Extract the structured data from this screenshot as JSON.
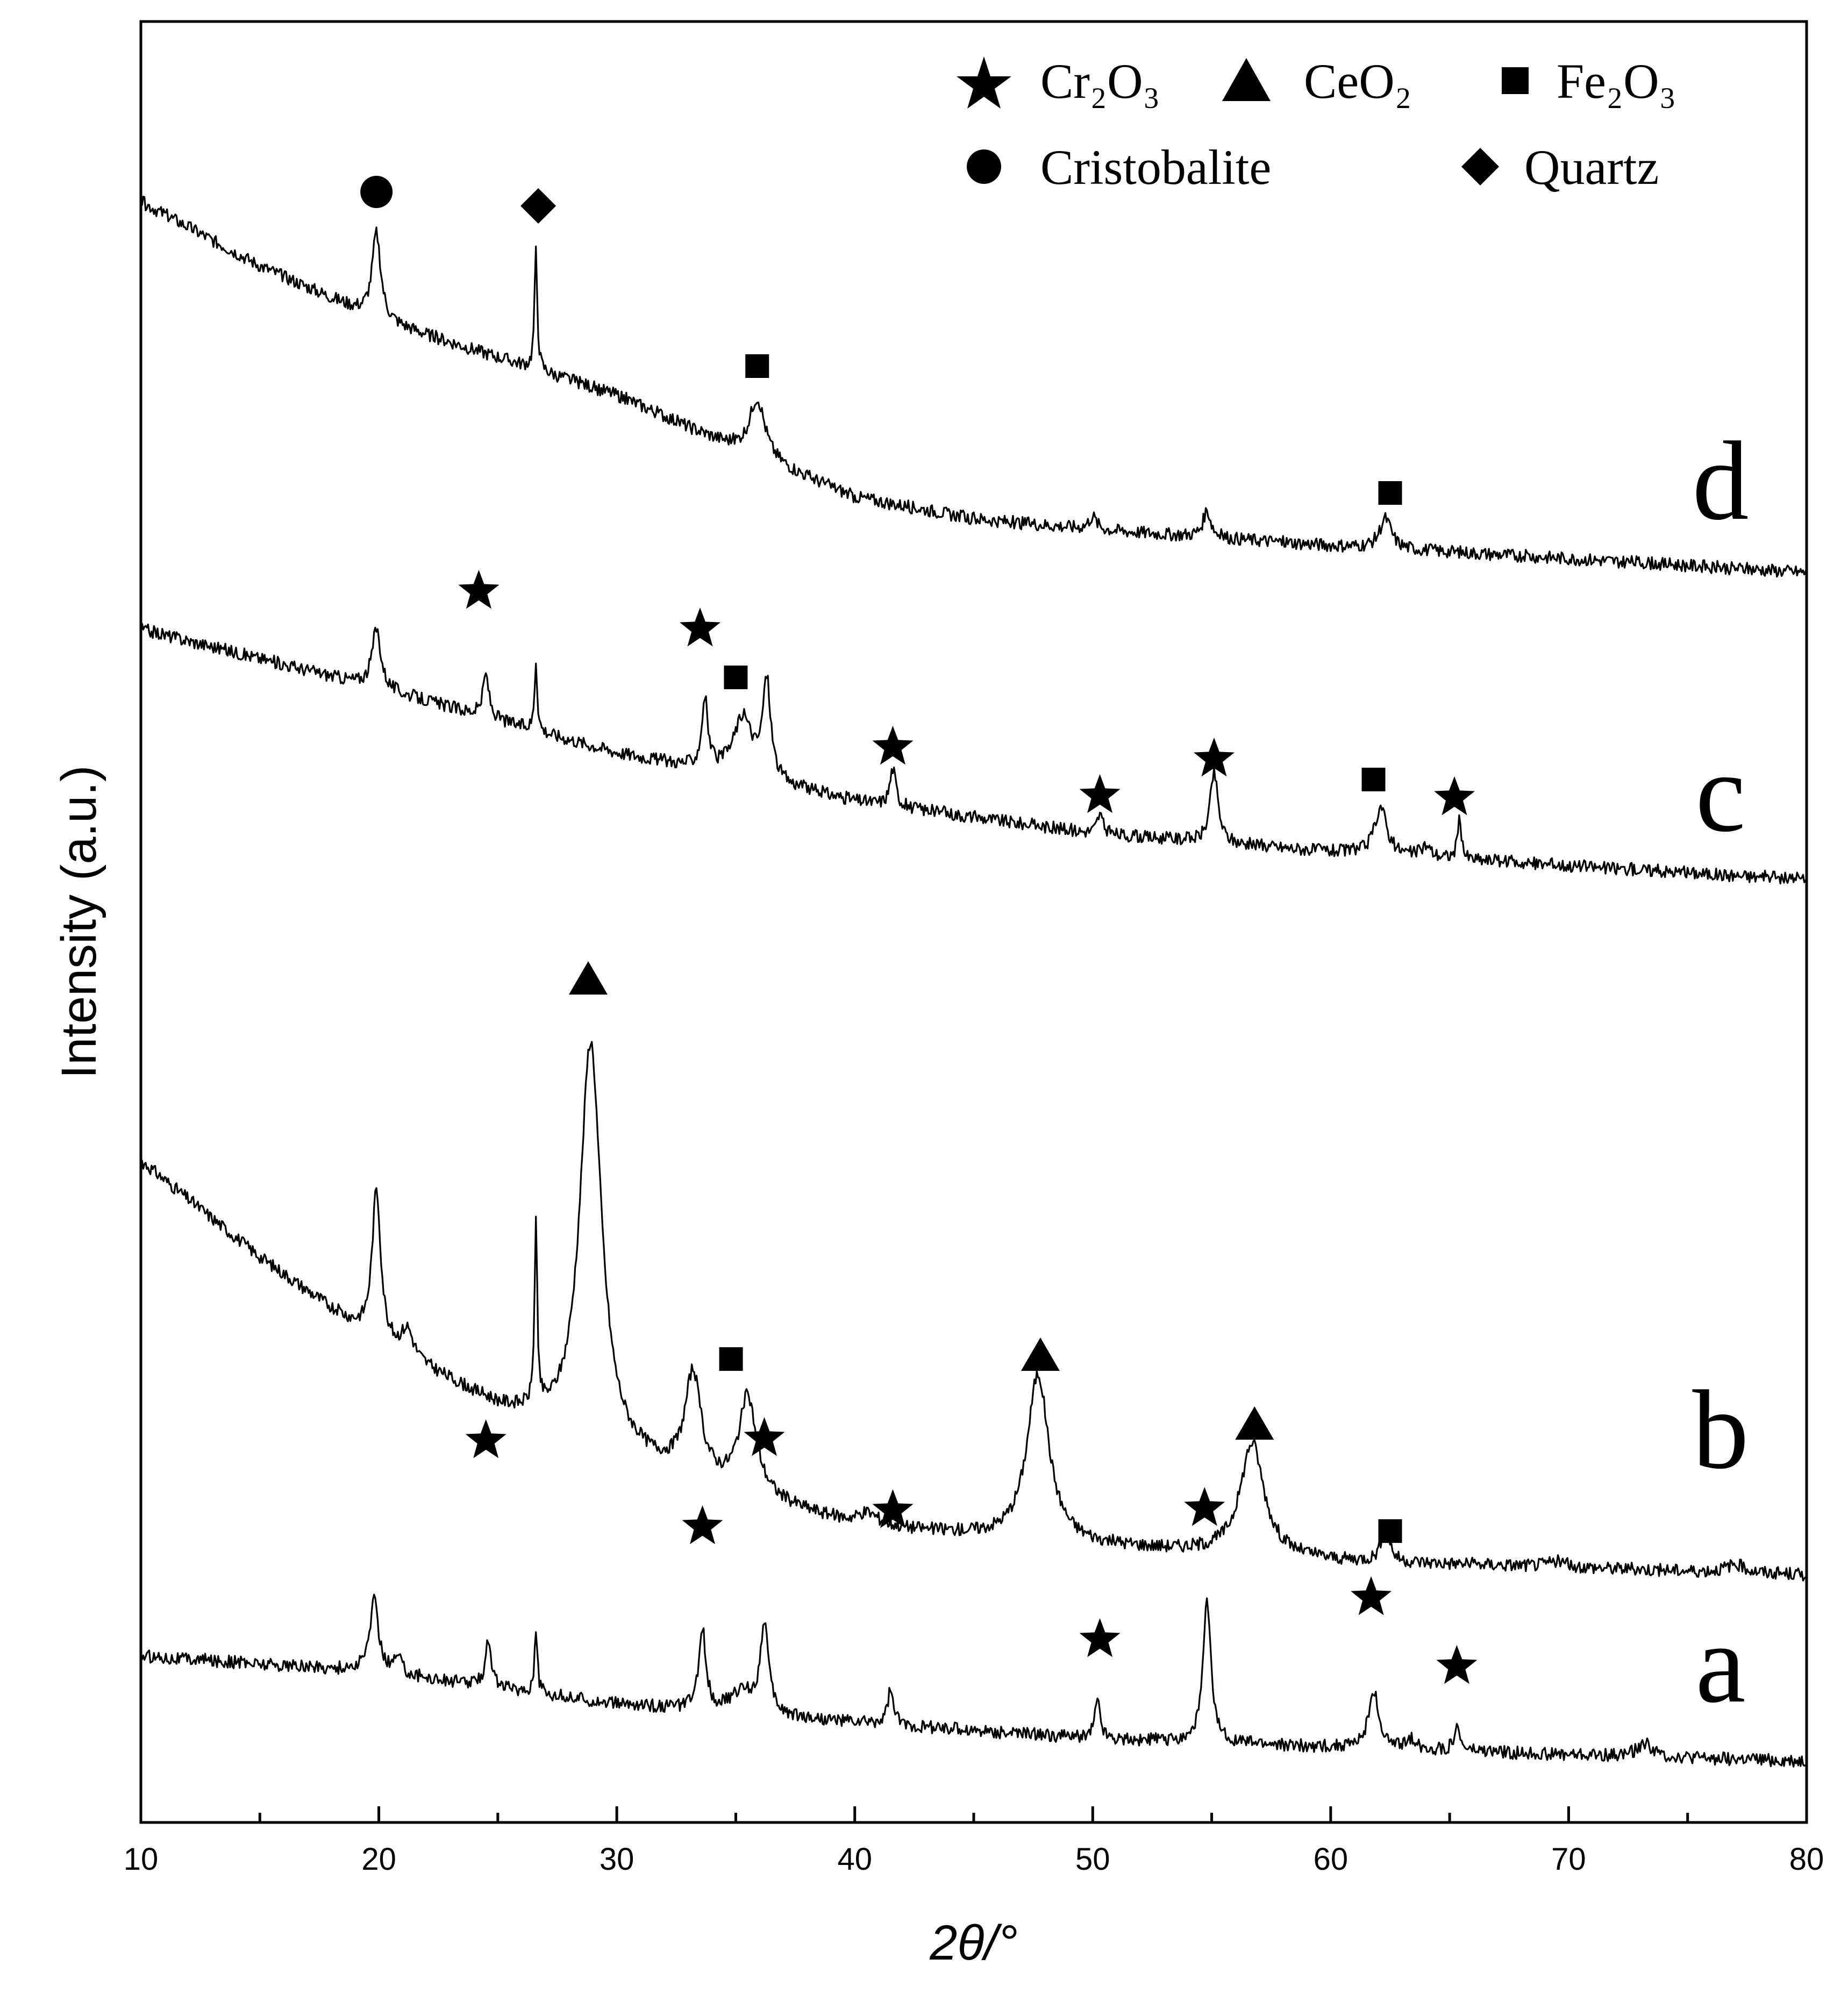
{
  "chart_data": {
    "type": "line",
    "title": "",
    "xlabel": "2θ/°",
    "ylabel": "Intensity (a.u.)",
    "xlim": [
      10,
      80
    ],
    "xticks": [
      "10",
      "20",
      "30",
      "40",
      "50",
      "60",
      "70",
      "80"
    ],
    "grid": false,
    "legend_position": "top-right",
    "legend": [
      {
        "symbol": "star",
        "label": "Cr₂O₃"
      },
      {
        "symbol": "triangle",
        "label": "CeO₂"
      },
      {
        "symbol": "square",
        "label": "Fe₂O₃"
      },
      {
        "symbol": "circle",
        "label": "Cristobalite"
      },
      {
        "symbol": "diamond",
        "label": "Quartz"
      }
    ],
    "series": [
      {
        "name": "a",
        "background": [
          [
            10,
            1.1
          ],
          [
            20,
            0.95
          ],
          [
            30,
            0.65
          ],
          [
            40,
            0.48
          ],
          [
            50,
            0.33
          ],
          [
            60,
            0.25
          ],
          [
            70,
            0.18
          ],
          [
            80,
            0.12
          ]
        ],
        "peaks": [
          [
            19.8,
            0.66,
            0.22
          ],
          [
            20.8,
            0.15,
            0.2
          ],
          [
            24.6,
            0.45,
            0.15
          ],
          [
            26.6,
            0.62,
            0.07
          ],
          [
            33.6,
            0.74,
            0.18
          ],
          [
            35.3,
            0.2,
            0.6
          ],
          [
            36.2,
            0.84,
            0.2
          ],
          [
            41.5,
            0.32,
            0.15
          ],
          [
            50.2,
            0.35,
            0.15
          ],
          [
            54.8,
            1.3,
            0.2
          ],
          [
            61.8,
            0.55,
            0.25
          ],
          [
            63.4,
            0.1,
            0.2
          ],
          [
            65.3,
            0.22,
            0.15
          ],
          [
            73.2,
            0.12,
            0.4
          ]
        ],
        "markers": [
          [
            "star",
            24.5,
            3.1
          ],
          [
            "star",
            33.6,
            2.3
          ],
          [
            "star",
            36.2,
            3.12
          ],
          [
            "star",
            41.6,
            2.45
          ],
          [
            "star",
            50.3,
            1.25
          ],
          [
            "star",
            54.7,
            2.47
          ],
          [
            "star",
            61.7,
            1.64
          ],
          [
            "star",
            65.3,
            1.0
          ]
        ]
      },
      {
        "name": "b",
        "background": [
          [
            10,
            3.9
          ],
          [
            15,
            3.0
          ],
          [
            20,
            2.2
          ],
          [
            25,
            1.6
          ],
          [
            30,
            1.15
          ],
          [
            35,
            0.8
          ],
          [
            40,
            0.5
          ],
          [
            50,
            0.32
          ],
          [
            60,
            0.18
          ],
          [
            70,
            0.12
          ],
          [
            80,
            0.05
          ]
        ],
        "peaks": [
          [
            19.9,
            1.4,
            0.22
          ],
          [
            21.2,
            0.25,
            0.3
          ],
          [
            26.6,
            1.7,
            0.07
          ],
          [
            28.9,
            3.75,
            0.55
          ],
          [
            33.2,
            0.95,
            0.4
          ],
          [
            35.5,
            0.9,
            0.45
          ],
          [
            40.5,
            0.12,
            0.6
          ],
          [
            47.7,
            1.55,
            0.55
          ],
          [
            56.7,
            1.05,
            0.6
          ],
          [
            62.3,
            0.35,
            0.2
          ],
          [
            69.5,
            0.05,
            0.5
          ],
          [
            77.0,
            0.08,
            0.5
          ]
        ],
        "markers": [
          [
            "triangle",
            28.8,
            5.6
          ],
          [
            "square",
            34.8,
            2.06
          ],
          [
            "triangle",
            47.8,
            2.1
          ],
          [
            "triangle",
            56.8,
            1.46
          ],
          [
            "square",
            62.5,
            0.46
          ]
        ]
      },
      {
        "name": "c",
        "background": [
          [
            10,
            2.45
          ],
          [
            20,
            1.9
          ],
          [
            30,
            1.3
          ],
          [
            40,
            0.85
          ],
          [
            50,
            0.55
          ],
          [
            60,
            0.38
          ],
          [
            70,
            0.25
          ],
          [
            80,
            0.12
          ]
        ],
        "peaks": [
          [
            19.9,
            0.55,
            0.22
          ],
          [
            24.5,
            0.4,
            0.15
          ],
          [
            26.6,
            0.65,
            0.07
          ],
          [
            33.7,
            0.65,
            0.15
          ],
          [
            35.3,
            0.55,
            0.5
          ],
          [
            36.3,
            0.9,
            0.2
          ],
          [
            41.6,
            0.35,
            0.15
          ],
          [
            50.3,
            0.18,
            0.15
          ],
          [
            55.1,
            0.65,
            0.2
          ],
          [
            62.1,
            0.45,
            0.3
          ],
          [
            64.0,
            0.1,
            0.25
          ],
          [
            65.4,
            0.35,
            0.1
          ]
        ],
        "markers": [
          [
            "star",
            24.2,
            2.8
          ],
          [
            "star",
            33.5,
            2.45
          ],
          [
            "square",
            35.0,
            2.0
          ],
          [
            "star",
            41.6,
            1.35
          ],
          [
            "star",
            50.3,
            0.9
          ],
          [
            "star",
            55.1,
            1.24
          ],
          [
            "square",
            61.8,
            1.05
          ],
          [
            "star",
            65.2,
            0.88
          ]
        ]
      },
      {
        "name": "d",
        "background": [
          [
            10,
            3.5
          ],
          [
            15,
            2.9
          ],
          [
            20,
            2.4
          ],
          [
            25,
            2.05
          ],
          [
            30,
            1.7
          ],
          [
            35,
            1.2
          ],
          [
            40,
            0.75
          ],
          [
            45,
            0.55
          ],
          [
            50,
            0.45
          ],
          [
            60,
            0.3
          ],
          [
            70,
            0.18
          ],
          [
            80,
            0.05
          ]
        ],
        "peaks": [
          [
            19.9,
            0.8,
            0.22
          ],
          [
            26.6,
            1.1,
            0.07
          ],
          [
            35.9,
            0.55,
            0.4
          ],
          [
            50.0,
            0.12,
            0.2
          ],
          [
            54.8,
            0.25,
            0.2
          ],
          [
            62.3,
            0.28,
            0.3
          ]
        ],
        "markers": [
          [
            "circle",
            19.9,
            3.59
          ],
          [
            "diamond",
            26.7,
            3.46
          ],
          [
            "square",
            35.9,
            1.97
          ],
          [
            "square",
            62.5,
            0.79
          ]
        ]
      }
    ]
  }
}
